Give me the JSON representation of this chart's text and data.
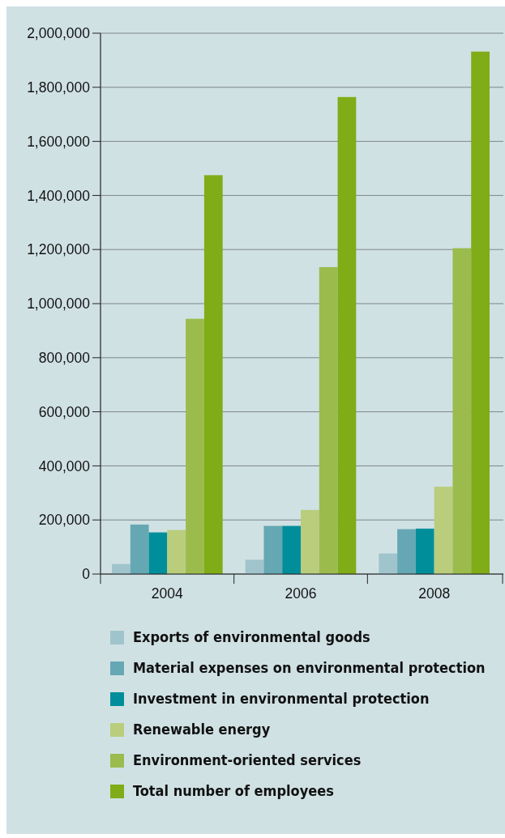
{
  "chart_data": {
    "type": "bar",
    "categories": [
      "2004",
      "2006",
      "2008"
    ],
    "series": [
      {
        "name": "Exports of environmental goods",
        "color": "#a0c4cc",
        "values": [
          37000,
          53000,
          76000
        ]
      },
      {
        "name": "Material expenses on environmental protection",
        "color": "#65a8b3",
        "values": [
          183000,
          178000,
          166000
        ]
      },
      {
        "name": "Investment in environmental protection",
        "color": "#008e9b",
        "values": [
          154000,
          178000,
          168000
        ]
      },
      {
        "name": "Renewable energy",
        "color": "#b9cd7d",
        "values": [
          163000,
          237000,
          323000
        ]
      },
      {
        "name": "Environment-oriented services",
        "color": "#9bbb4d",
        "values": [
          944000,
          1135000,
          1205000
        ]
      },
      {
        "name": "Total number of employees",
        "color": "#80ac18",
        "values": [
          1475000,
          1764000,
          1932000
        ]
      }
    ],
    "ylim": [
      0,
      2000000
    ],
    "yticks": [
      {
        "value": 0,
        "label": "0"
      },
      {
        "value": 200000,
        "label": "200,000"
      },
      {
        "value": 400000,
        "label": "400,000"
      },
      {
        "value": 600000,
        "label": "600,000"
      },
      {
        "value": 800000,
        "label": "800,000"
      },
      {
        "value": 1000000,
        "label": "1,000,000"
      },
      {
        "value": 1200000,
        "label": "1,200,000"
      },
      {
        "value": 1400000,
        "label": "1,400,000"
      },
      {
        "value": 1600000,
        "label": "1,600,000"
      },
      {
        "value": 1800000,
        "label": "1,800,000"
      },
      {
        "value": 2000000,
        "label": "2,000,000"
      }
    ],
    "grid": "y",
    "legend": "bottom"
  }
}
